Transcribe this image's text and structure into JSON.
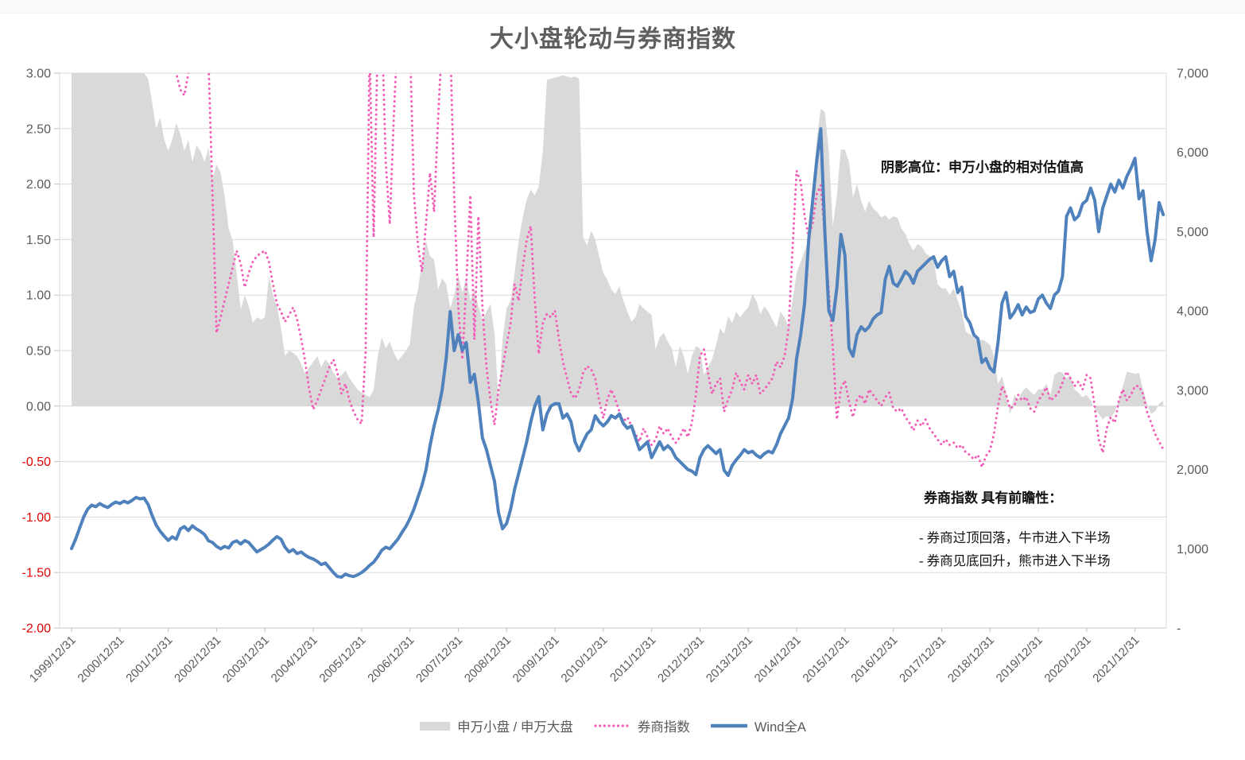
{
  "title": "大小盘轮动与券商指数",
  "colors": {
    "area": "#d9d9d9",
    "broker_index": "#f25db8",
    "wind_all_a": "#4f81bd",
    "grid": "#d9d9d9",
    "axis_text": "#595959",
    "axis_text_negative": "#e00000",
    "title_text": "#5f5f5f"
  },
  "left_axis": {
    "tick_labels": [
      "3.00",
      "2.50",
      "2.00",
      "1.50",
      "1.00",
      "0.50",
      "0.00",
      "-0.50",
      "-1.00",
      "-1.50",
      "-2.00"
    ],
    "max": 3,
    "min": -2,
    "step": 0.5
  },
  "right_axis": {
    "tick_labels": [
      "7,000",
      "6,000",
      "5,000",
      "4,000",
      "3,000",
      "2,000",
      "1,000",
      "-"
    ],
    "max": 7000,
    "min": 0,
    "step": 1000
  },
  "x_axis": {
    "tick_labels": [
      "1999/12/31",
      "2000/12/31",
      "2001/12/31",
      "2002/12/31",
      "2003/12/31",
      "2004/12/31",
      "2005/12/31",
      "2006/12/31",
      "2007/12/31",
      "2008/12/31",
      "2009/12/31",
      "2010/12/31",
      "2011/12/31",
      "2012/12/31",
      "2013/12/31",
      "2014/12/31",
      "2015/12/31",
      "2016/12/31",
      "2017/12/31",
      "2018/12/31",
      "2019/12/31",
      "2020/12/31",
      "2021/12/31"
    ]
  },
  "legend": {
    "items": [
      {
        "label": "申万小盘 / 申万大盘",
        "type": "area"
      },
      {
        "label": "券商指数",
        "type": "dotted"
      },
      {
        "label": "Wind全A",
        "type": "line"
      }
    ]
  },
  "annotations": {
    "shadow_note": "阴影高位：申万小盘的相对估值高",
    "broker_title": "券商指数 具有前瞻性：",
    "broker_line1": "- 券商过顶回落，牛市进入下半场",
    "broker_line2": "- 券商见底回升，熊市进入下半场"
  },
  "chart_data": {
    "type": "line",
    "title": "大小盘轮动与券商指数",
    "x_frequency": "monthly",
    "x_start": "1999-12",
    "x_end": "2022-07",
    "x_tick_labels": [
      "1999/12/31",
      "2000/12/31",
      "2001/12/31",
      "2002/12/31",
      "2003/12/31",
      "2004/12/31",
      "2005/12/31",
      "2006/12/31",
      "2007/12/31",
      "2008/12/31",
      "2009/12/31",
      "2010/12/31",
      "2011/12/31",
      "2012/12/31",
      "2013/12/31",
      "2014/12/31",
      "2015/12/31",
      "2016/12/31",
      "2017/12/31",
      "2018/12/31",
      "2019/12/31",
      "2020/12/31",
      "2021/12/31"
    ],
    "left_ylim": [
      -2,
      3
    ],
    "right_ylim": [
      0,
      7000
    ],
    "grid": "horizontal",
    "legend_position": "bottom",
    "series": [
      {
        "name": "申万小盘 / 申万大盘",
        "axis": "left",
        "style": "area",
        "color": "#d9d9d9",
        "values": [
          3.0,
          3.0,
          3.0,
          3.0,
          3.0,
          3.0,
          3.0,
          3.0,
          3.0,
          3.0,
          3.0,
          3.0,
          3.0,
          3.0,
          3.0,
          3.0,
          3.0,
          3.0,
          3.0,
          2.95,
          2.74,
          2.5,
          2.6,
          2.4,
          2.3,
          2.4,
          2.55,
          2.45,
          2.3,
          2.4,
          2.2,
          2.35,
          2.3,
          2.2,
          2.33,
          2.05,
          2.18,
          2.1,
          1.9,
          1.6,
          1.49,
          1.2,
          0.87,
          1.0,
          0.9,
          0.75,
          0.8,
          0.78,
          0.8,
          1.17,
          1.0,
          0.9,
          0.7,
          0.45,
          0.5,
          0.48,
          0.45,
          0.38,
          0.29,
          0.35,
          0.4,
          0.45,
          0.35,
          0.42,
          0.38,
          0.3,
          0.25,
          0.28,
          0.32,
          0.25,
          0.2,
          0.15,
          0.12,
          0.1,
          0.08,
          0.15,
          0.45,
          0.62,
          0.52,
          0.58,
          0.48,
          0.41,
          0.45,
          0.5,
          0.56,
          0.9,
          1.05,
          1.3,
          1.49,
          1.35,
          1.32,
          1.05,
          1.15,
          1.1,
          0.88,
          1.0,
          1.18,
          1.02,
          1.16,
          0.95,
          1.05,
          0.9,
          0.78,
          0.85,
          0.92,
          0.65,
          0.05,
          0.6,
          0.88,
          0.95,
          1.2,
          1.49,
          1.7,
          1.86,
          1.95,
          1.9,
          1.98,
          2.3,
          2.94,
          2.95,
          2.96,
          2.97,
          2.98,
          2.97,
          2.96,
          2.97,
          2.95,
          1.52,
          1.45,
          1.58,
          1.5,
          1.35,
          1.2,
          1.14,
          1.05,
          1.01,
          1.08,
          0.95,
          0.85,
          0.76,
          0.8,
          0.92,
          0.88,
          0.85,
          0.82,
          0.51,
          0.62,
          0.66,
          0.58,
          0.52,
          0.35,
          0.54,
          0.45,
          0.29,
          0.45,
          0.54,
          0.52,
          0.28,
          0.35,
          0.42,
          0.55,
          0.7,
          0.65,
          0.81,
          0.75,
          0.85,
          0.8,
          0.85,
          0.89,
          1.01,
          0.95,
          0.83,
          0.9,
          0.85,
          0.78,
          0.71,
          0.85,
          0.8,
          0.71,
          0.95,
          1.2,
          1.3,
          1.4,
          1.5,
          1.9,
          2.4,
          2.68,
          2.65,
          2.3,
          1.62,
          1.9,
          2.31,
          2.31,
          2.2,
          1.88,
          2.0,
          1.85,
          1.75,
          1.85,
          1.78,
          1.75,
          1.7,
          1.72,
          1.68,
          1.71,
          1.7,
          1.6,
          1.55,
          1.46,
          1.4,
          1.46,
          1.44,
          1.38,
          1.35,
          1.32,
          1.1,
          1.06,
          1.06,
          1.0,
          1.06,
          0.95,
          0.85,
          0.67,
          0.65,
          0.62,
          0.58,
          0.6,
          0.58,
          0.55,
          0.45,
          0.2,
          0.27,
          0.13,
          -0.08,
          0.1,
          0.06,
          0.13,
          0.17,
          0.13,
          0.1,
          0.15,
          0.15,
          0.2,
          0.1,
          0.28,
          0.31,
          0.3,
          0.25,
          0.28,
          0.15,
          0.12,
          0.08,
          0.1,
          0.05,
          -0.02,
          -0.07,
          -0.12,
          -0.09,
          -0.11,
          -0.05,
          0.05,
          0.18,
          0.31,
          0.3,
          0.29,
          0.3,
          0.15,
          0.02,
          -0.07,
          -0.05,
          0.02,
          0.05
        ]
      },
      {
        "name": "券商指数",
        "axis": "left",
        "style": "dotted",
        "color": "#f25db8",
        "values": [
          3.5,
          3.6,
          3.7,
          3.8,
          3.9,
          4.0,
          4.0,
          3.9,
          3.8,
          3.8,
          3.7,
          3.6,
          3.5,
          3.6,
          3.7,
          3.6,
          3.5,
          3.4,
          3.5,
          3.4,
          3.3,
          3.2,
          3.3,
          3.2,
          3.1,
          3.2,
          3.0,
          2.85,
          2.8,
          3.0,
          3.2,
          3.3,
          3.4,
          3.3,
          3.1,
          1.9,
          0.66,
          0.8,
          0.95,
          1.1,
          1.25,
          1.4,
          1.28,
          1.07,
          1.2,
          1.3,
          1.35,
          1.38,
          1.4,
          1.3,
          1.1,
          0.92,
          0.85,
          0.76,
          0.82,
          0.89,
          0.78,
          0.61,
          0.4,
          0.15,
          -0.03,
          0.05,
          0.15,
          0.25,
          0.35,
          0.42,
          0.3,
          0.11,
          0.2,
          0.05,
          -0.05,
          -0.12,
          -0.16,
          0.5,
          3.2,
          1.52,
          3.3,
          3.5,
          2.2,
          1.64,
          2.6,
          3.4,
          3.5,
          3.4,
          3.3,
          1.9,
          1.45,
          1.21,
          1.65,
          2.1,
          1.75,
          2.6,
          3.3,
          3.5,
          3.3,
          1.9,
          0.9,
          0.42,
          1.1,
          1.9,
          0.6,
          1.71,
          0.9,
          0.35,
          0.05,
          -0.17,
          0.15,
          0.35,
          0.55,
          0.75,
          1.1,
          0.95,
          1.25,
          1.5,
          1.62,
          0.95,
          0.47,
          0.75,
          0.83,
          0.8,
          0.86,
          0.6,
          0.4,
          0.25,
          0.11,
          0.07,
          0.15,
          0.3,
          0.36,
          0.33,
          0.25,
          0.05,
          -0.11,
          0.06,
          0.15,
          0.06,
          -0.05,
          -0.14,
          -0.1,
          -0.18,
          -0.25,
          -0.32,
          -0.2,
          -0.28,
          -0.35,
          -0.3,
          -0.18,
          -0.25,
          -0.2,
          -0.28,
          -0.33,
          -0.28,
          -0.2,
          -0.28,
          -0.15,
          0.1,
          0.45,
          0.51,
          0.3,
          0.11,
          0.2,
          0.25,
          -0.05,
          0.06,
          0.15,
          0.3,
          0.22,
          0.15,
          0.28,
          0.2,
          0.28,
          0.11,
          0.15,
          0.2,
          0.25,
          0.4,
          0.35,
          0.45,
          0.7,
          1.42,
          2.12,
          2.02,
          1.71,
          1.52,
          1.65,
          1.91,
          1.99,
          1.52,
          1.04,
          0.52,
          -0.12,
          0.16,
          0.23,
          0.04,
          -0.1,
          0.06,
          0.1,
          0.02,
          0.15,
          0.1,
          0.05,
          0.0,
          0.08,
          0.12,
          -0.02,
          -0.05,
          -0.02,
          -0.1,
          -0.15,
          -0.22,
          -0.13,
          -0.18,
          -0.12,
          -0.2,
          -0.25,
          -0.3,
          -0.35,
          -0.3,
          -0.35,
          -0.33,
          -0.38,
          -0.35,
          -0.42,
          -0.44,
          -0.48,
          -0.44,
          -0.55,
          -0.45,
          -0.4,
          -0.25,
          0.0,
          0.18,
          0.1,
          -0.02,
          0.0,
          0.1,
          0.05,
          0.08,
          -0.02,
          -0.05,
          0.05,
          0.1,
          0.17,
          0.05,
          0.08,
          0.12,
          0.21,
          0.31,
          0.25,
          0.18,
          0.22,
          0.15,
          0.28,
          0.25,
          0.0,
          -0.3,
          -0.42,
          -0.2,
          -0.1,
          -0.15,
          0.05,
          0.15,
          0.05,
          0.1,
          0.18,
          0.18,
          0.11,
          -0.05,
          -0.15,
          -0.25,
          -0.32,
          -0.39
        ]
      },
      {
        "name": "Wind全A",
        "axis": "right",
        "style": "solid",
        "color": "#4f81bd",
        "values": [
          1003,
          1120,
          1260,
          1400,
          1500,
          1550,
          1530,
          1570,
          1540,
          1520,
          1560,
          1590,
          1570,
          1600,
          1580,
          1610,
          1648,
          1630,
          1640,
          1560,
          1420,
          1300,
          1220,
          1160,
          1105,
          1150,
          1120,
          1250,
          1280,
          1230,
          1290,
          1250,
          1220,
          1180,
          1100,
          1080,
          1030,
          1000,
          1030,
          1010,
          1080,
          1100,
          1060,
          1103,
          1080,
          1020,
          960,
          990,
          1020,
          1060,
          1110,
          1153,
          1120,
          1020,
          960,
          990,
          940,
          960,
          920,
          890,
          870,
          840,
          800,
          820,
          760,
          700,
          650,
          642,
          680,
          660,
          650,
          670,
          700,
          740,
          790,
          830,
          900,
          980,
          1020,
          1000,
          1060,
          1120,
          1204,
          1280,
          1380,
          1500,
          1650,
          1800,
          2000,
          2300,
          2550,
          2750,
          3000,
          3400,
          3991,
          3500,
          3700,
          3500,
          3600,
          3100,
          3200,
          2850,
          2400,
          2250,
          2050,
          1850,
          1450,
          1253,
          1320,
          1500,
          1750,
          1950,
          2150,
          2350,
          2600,
          2800,
          2918,
          2500,
          2700,
          2800,
          2830,
          2829,
          2650,
          2700,
          2600,
          2350,
          2237,
          2350,
          2450,
          2500,
          2678,
          2600,
          2550,
          2600,
          2680,
          2650,
          2700,
          2580,
          2520,
          2550,
          2400,
          2250,
          2300,
          2350,
          2150,
          2250,
          2350,
          2250,
          2300,
          2250,
          2150,
          2100,
          2050,
          2000,
          1980,
          1936,
          2150,
          2250,
          2300,
          2250,
          2200,
          2250,
          1990,
          1926,
          2050,
          2120,
          2180,
          2250,
          2210,
          2230,
          2180,
          2150,
          2200,
          2230,
          2210,
          2310,
          2450,
          2550,
          2650,
          2889,
          3400,
          3700,
          4100,
          4895,
          5400,
          5900,
          6298,
          5000,
          4000,
          3881,
          4300,
          4965,
          4700,
          3530,
          3430,
          3700,
          3800,
          3750,
          3800,
          3900,
          3950,
          3980,
          4400,
          4563,
          4350,
          4312,
          4400,
          4500,
          4450,
          4350,
          4500,
          4550,
          4600,
          4650,
          4683,
          4550,
          4633,
          4683,
          4433,
          4500,
          4232,
          4300,
          3930,
          3850,
          3700,
          3650,
          3350,
          3400,
          3279,
          3229,
          3600,
          4100,
          4232,
          3911,
          3980,
          4080,
          3950,
          4050,
          3980,
          4000,
          4150,
          4200,
          4100,
          4032,
          4200,
          4250,
          4432,
          5193,
          5300,
          5150,
          5200,
          5350,
          5395,
          5550,
          5400,
          5000,
          5300,
          5450,
          5600,
          5500,
          5650,
          5550,
          5700,
          5800,
          5926,
          5415,
          5516,
          5000,
          4633,
          4900,
          5366,
          5215
        ]
      }
    ]
  }
}
